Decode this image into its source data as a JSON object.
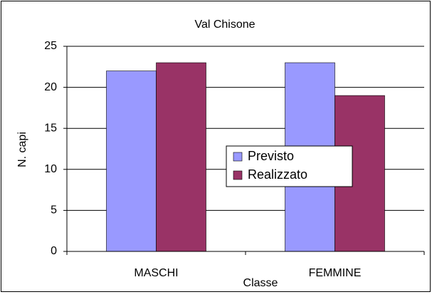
{
  "chart_data": {
    "type": "bar",
    "title": "Val Chisone",
    "x_label": "Classe",
    "y_label": "N. capi",
    "categories": [
      "MASCHI",
      "FEMMINE"
    ],
    "series": [
      {
        "name": "Previsto",
        "color": "#9999ff",
        "values": [
          22,
          23
        ]
      },
      {
        "name": "Realizzato",
        "color": "#993366",
        "values": [
          23,
          19
        ]
      }
    ],
    "ylim": [
      0,
      25
    ],
    "yticks": [
      0,
      5,
      10,
      15,
      20,
      25
    ],
    "grid": true,
    "legend": "center-right"
  }
}
